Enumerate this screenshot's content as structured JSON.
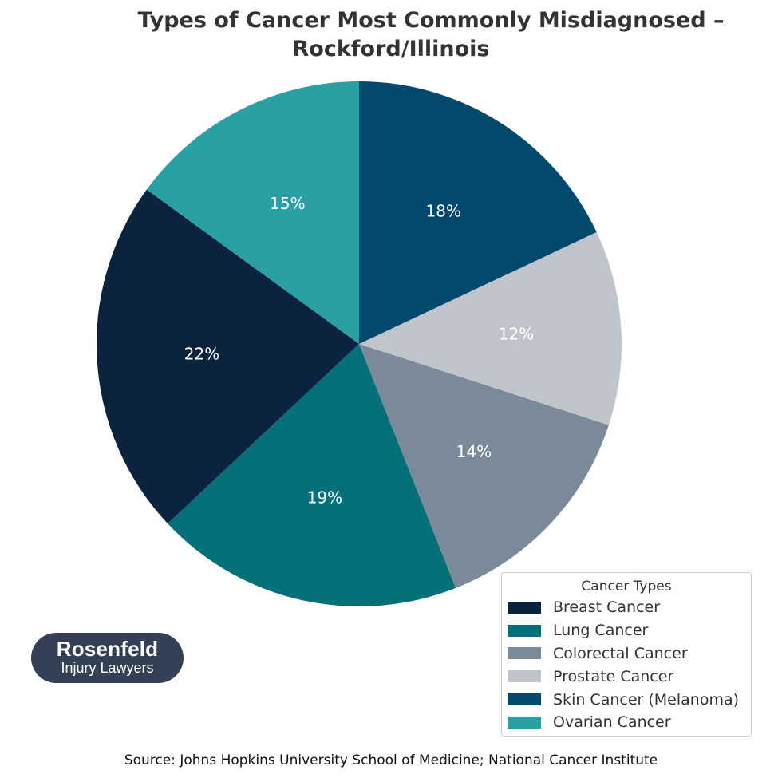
{
  "chart_data": {
    "type": "pie",
    "title_line1": "Types of Cancer Most Commonly Misdiagnosed –",
    "title_line2": "Rockford/Illinois",
    "slices": [
      {
        "label": "Breast Cancer",
        "value": 22,
        "display": "22%",
        "color": "#0c2340"
      },
      {
        "label": "Lung Cancer",
        "value": 19,
        "display": "19%",
        "color": "#03707a"
      },
      {
        "label": "Colorectal Cancer",
        "value": 14,
        "display": "14%",
        "color": "#7a8a98"
      },
      {
        "label": "Prostate Cancer",
        "value": 12,
        "display": "12%",
        "color": "#c0c5cb"
      },
      {
        "label": "Skin Cancer (Melanoma)",
        "value": 18,
        "display": "18%",
        "color": "#014a6d"
      },
      {
        "label": "Ovarian Cancer",
        "value": 15,
        "display": "15%",
        "color": "#29a1a4"
      }
    ],
    "start_angle_deg": 144,
    "direction": "counterclockwise",
    "legend": {
      "title": "Cancer Types",
      "placement": "bottom-right"
    }
  },
  "branding": {
    "logo_name": "Rosenfeld",
    "logo_tagline": "Injury Lawyers"
  },
  "source": "Source: Johns Hopkins University School of Medicine; National Cancer Institute"
}
